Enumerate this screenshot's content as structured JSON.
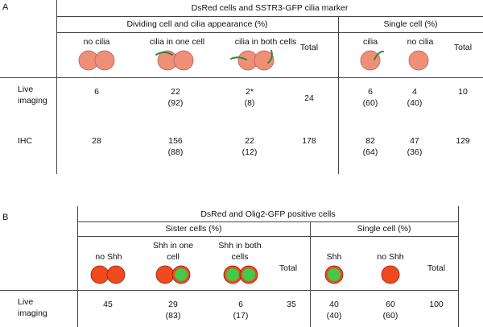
{
  "colors": {
    "salmon_cell": "#f08f78",
    "salmon_cell_border": "#b06050",
    "green_cilium": "#2e8b2e",
    "red_cell": "#f04a1e",
    "red_cell_border": "#8a1f0a",
    "green_nucleus": "#46c84a",
    "line": "#444444"
  },
  "panel_a": {
    "letter": "A",
    "header": "DsRed cells and SSTR3-GFP cilia marker",
    "group_dividing": "Dividing cell and cilia appearance (%)",
    "group_single": "Single cell (%)",
    "col_no_cilia": "no cilia",
    "col_cilia_one": "cilia in one cell",
    "col_cilia_both": "cilia in both cells",
    "col_total": "Total",
    "col_cilia": "cilia",
    "col_single_no_cilia": "no cilia",
    "col_single_total": "Total",
    "rows": [
      {
        "label": "Live\nimaging",
        "no_cilia": "6",
        "cilia_one": "22\n(92)",
        "cilia_both": "2*\n(8)",
        "total": "24",
        "cilia": "6\n(60)",
        "single_no_cilia": "4\n(40)",
        "single_total": "10"
      },
      {
        "label": "IHC",
        "no_cilia": "28",
        "cilia_one": "156\n(88)",
        "cilia_both": "22\n(12)",
        "total": "178",
        "cilia": "82\n(64)",
        "single_no_cilia": "47\n(36)",
        "single_total": "129"
      }
    ]
  },
  "panel_b": {
    "letter": "B",
    "header": "DsRed and Olig2-GFP positive cells",
    "group_sister": "Sister cells (%)",
    "group_single": "Single cell  (%)",
    "col_no_shh": "no Shh",
    "col_shh_one": "Shh in one\ncell",
    "col_shh_both": "Shh in both\ncells",
    "col_total": "Total",
    "col_shh": "Shh",
    "col_single_no_shh": "no Shh",
    "col_single_total": "Total",
    "rows": [
      {
        "label": "Live\nimaging",
        "no_shh": "45",
        "shh_one": "29\n(83)",
        "shh_both": "6\n(17)",
        "total": "35",
        "shh": "40\n(40)",
        "single_no_shh": "60\n(60)",
        "single_total": "100"
      }
    ]
  }
}
